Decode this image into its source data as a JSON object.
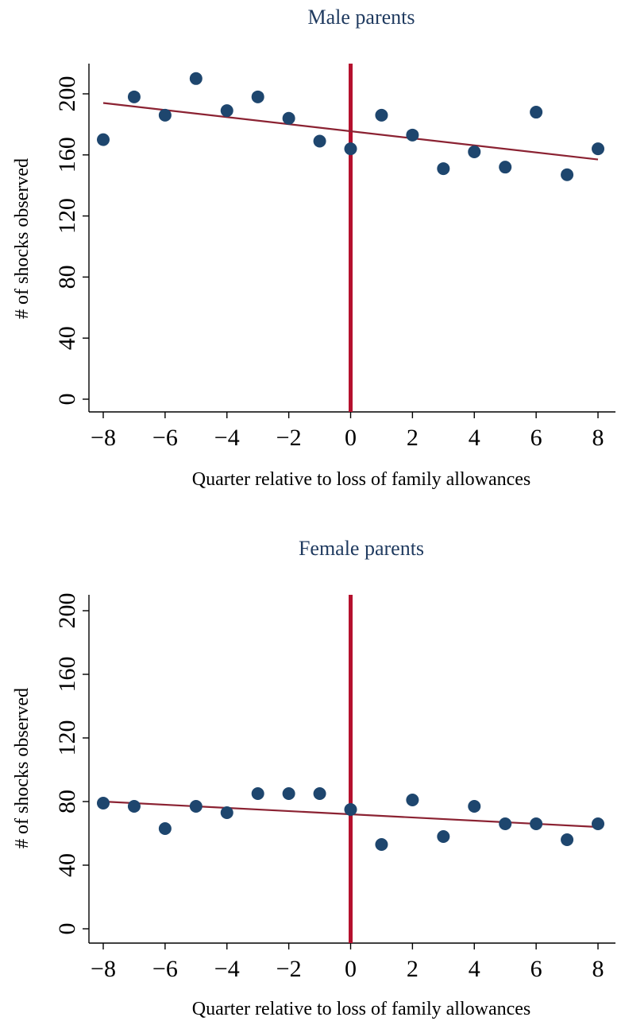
{
  "chart_data": [
    {
      "type": "scatter",
      "title": "Male parents",
      "xlabel": "Quarter relative to loss of family allowances",
      "ylabel": "# of shocks observed",
      "xlim": [
        -8,
        8
      ],
      "ylim": [
        0,
        200
      ],
      "xticks": [
        "−8",
        "−6",
        "−4",
        "−2",
        "0",
        "2",
        "4",
        "6",
        "8"
      ],
      "yticks": [
        "0",
        "40",
        "80",
        "120",
        "160",
        "200"
      ],
      "grid": false,
      "reference_line_x": 0,
      "x": [
        -8,
        -7,
        -6,
        -5,
        -4,
        -3,
        -2,
        -1,
        0,
        1,
        2,
        3,
        4,
        5,
        6,
        7,
        8
      ],
      "y": [
        170,
        198,
        186,
        210,
        189,
        198,
        184,
        169,
        164,
        186,
        173,
        151,
        162,
        152,
        188,
        147,
        164
      ],
      "fit": {
        "x0": -8,
        "y0": 194,
        "x1": 8,
        "y1": 157
      },
      "colors": {
        "points": "#1e466e",
        "fit": "#8b2232",
        "reference": "#b5112e",
        "title": "#1f3a5f"
      }
    },
    {
      "type": "scatter",
      "title": "Female parents",
      "xlabel": "Quarter relative to loss of family allowances",
      "ylabel": "# of shocks observed",
      "xlim": [
        -8,
        8
      ],
      "ylim": [
        0,
        200
      ],
      "xticks": [
        "−8",
        "−6",
        "−4",
        "−2",
        "0",
        "2",
        "4",
        "6",
        "8"
      ],
      "yticks": [
        "0",
        "40",
        "80",
        "120",
        "160",
        "200"
      ],
      "grid": false,
      "reference_line_x": 0,
      "x": [
        -8,
        -7,
        -6,
        -5,
        -4,
        -3,
        -2,
        -1,
        0,
        1,
        2,
        3,
        4,
        5,
        6,
        7,
        8
      ],
      "y": [
        79,
        77,
        63,
        77,
        73,
        85,
        85,
        85,
        75,
        53,
        81,
        58,
        77,
        66,
        66,
        56,
        66
      ],
      "fit": {
        "x0": -8,
        "y0": 80,
        "x1": 8,
        "y1": 64
      },
      "colors": {
        "points": "#1e466e",
        "fit": "#8b2232",
        "reference": "#b5112e",
        "title": "#1f3a5f"
      }
    }
  ]
}
